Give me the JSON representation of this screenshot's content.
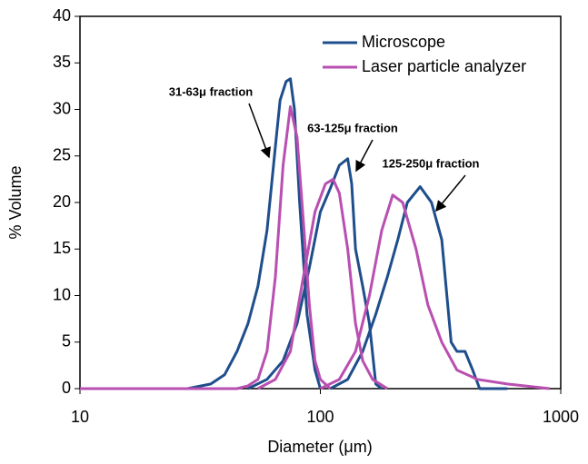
{
  "chart_data": {
    "type": "line",
    "x_label": "Diameter (μm)",
    "y_label": "% Volume",
    "xscale": "log",
    "xlim": [
      10,
      1000
    ],
    "xticks": [
      10,
      100,
      1000
    ],
    "ylim": [
      0,
      40
    ],
    "yticks": [
      0,
      5,
      10,
      15,
      20,
      25,
      30,
      35,
      40
    ],
    "grid": false,
    "legend": "upper right",
    "annotations": [
      "31-63μ fraction",
      "63-125μ fraction",
      "125-250μ fraction"
    ],
    "series": [
      {
        "name": "Microscope",
        "color": "#1f4e8c",
        "curves": [
          {
            "x": [
              20,
              28,
              35,
              40,
              45,
              50,
              55,
              60,
              65,
              68,
              72,
              75,
              78,
              82,
              88,
              95,
              100
            ],
            "values": [
              0,
              0,
              0.5,
              1.5,
              4,
              7,
              11,
              17,
              26,
              31,
              33,
              33.3,
              30,
              20,
              8,
              2,
              0
            ]
          },
          {
            "x": [
              50,
              60,
              70,
              80,
              90,
              100,
              110,
              120,
              130,
              135,
              140,
              150,
              160,
              170,
              180
            ],
            "values": [
              0,
              1,
              3,
              7,
              13,
              19,
              21.5,
              24,
              24.7,
              22,
              15,
              11,
              7,
              0.5,
              0
            ]
          },
          {
            "x": [
              110,
              130,
              150,
              170,
              190,
              210,
              230,
              260,
              290,
              320,
              350,
              370,
              400,
              430,
              460,
              600
            ],
            "values": [
              0,
              1,
              4,
              8,
              12,
              16,
              20,
              21.7,
              20,
              16,
              5,
              4,
              4,
              2,
              0,
              0
            ]
          }
        ]
      },
      {
        "name": "Laser particle analyzer",
        "color": "#b94fb0",
        "curves": [
          {
            "x": [
              10,
              45,
              50,
              55,
              60,
              65,
              70,
              75,
              80,
              85,
              90,
              95,
              100,
              110
            ],
            "values": [
              0,
              0,
              0.3,
              1,
              4,
              12,
              24,
              30.3,
              27,
              18,
              9,
              3,
              1,
              0
            ]
          },
          {
            "x": [
              55,
              65,
              75,
              85,
              95,
              105,
              113,
              120,
              130,
              140,
              150,
              165,
              190
            ],
            "values": [
              0,
              1,
              4,
              12,
              19,
              22,
              22.5,
              21,
              15,
              7,
              3,
              1,
              0
            ]
          },
          {
            "x": [
              100,
              120,
              140,
              160,
              180,
              200,
              220,
              250,
              280,
              320,
              370,
              450,
              600,
              900
            ],
            "values": [
              0,
              1,
              4,
              10,
              17,
              20.8,
              20,
              15,
              9,
              5,
              2,
              1,
              0.5,
              0
            ]
          }
        ]
      }
    ]
  }
}
